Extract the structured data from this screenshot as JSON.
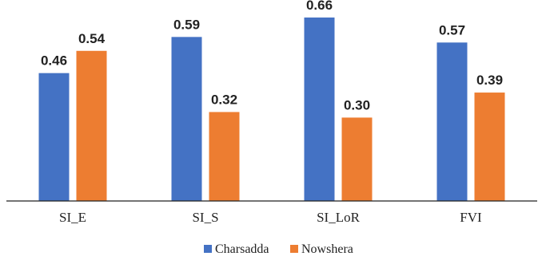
{
  "chart_data": {
    "type": "bar",
    "categories": [
      "SI_E",
      "SI_S",
      "SI_LoR",
      "FVI"
    ],
    "series": [
      {
        "name": "Charsadda",
        "color": "#4472C4",
        "values": [
          0.46,
          0.59,
          0.66,
          0.57
        ]
      },
      {
        "name": "Nowshera",
        "color": "#ED7D31",
        "values": [
          0.54,
          0.32,
          0.3,
          0.39
        ]
      }
    ],
    "value_labels": [
      [
        "0.46",
        "0.59",
        "0.66",
        "0.57"
      ],
      [
        "0.54",
        "0.32",
        "0.30",
        "0.39"
      ]
    ],
    "title": "",
    "xlabel": "",
    "ylabel": "",
    "ylim": [
      0,
      0.7
    ],
    "grid": false,
    "legend": "bottom-center"
  }
}
